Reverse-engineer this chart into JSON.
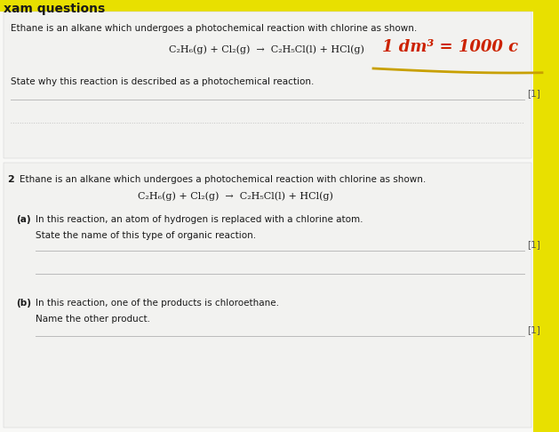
{
  "bg_yellow": "#e8e000",
  "bg_light": "#d8d8d8",
  "bg_white": "#f8f8f6",
  "bg_section": "#efefed",
  "text_dark": "#1a1a1a",
  "text_gray": "#444444",
  "mark_color": "#555555",
  "red_annotation": "#cc2200",
  "gold_underline": "#c8a000",
  "line_color": "#bbbbbb",
  "dotted_color": "#aaaaaa",
  "header_text": "xam questions",
  "s1_intro": "Ethane is an alkane which undergoes a photochemical reaction with chlorine as shown.",
  "s1_eq": "C₂H₆(g) + Cl₂(g)  →  C₂H₅Cl(l) + HCl(g)",
  "s1_annot": "1 dm³ = 1000 c",
  "s1_q": "State why this reaction is described as a photochemical reaction.",
  "s1_mark": "[1]",
  "s2_num": "2",
  "s2_intro": "Ethane is an alkane which undergoes a photochemical reaction with chlorine as shown.",
  "s2_eq": "C₂H₆(g) + Cl₂(g)  →  C₂H₅Cl(l) + HCl(g)",
  "s2a_label": "(a)",
  "s2a_ctx": "In this reaction, an atom of hydrogen is replaced with a chlorine atom.",
  "s2a_q": "State the name of this type of organic reaction.",
  "s2a_mark": "[1]",
  "s2b_label": "(b)",
  "s2b_ctx": "In this reaction, one of the products is chloroethane.",
  "s2b_q": "Name the other product.",
  "s2b_mark": "[1]"
}
